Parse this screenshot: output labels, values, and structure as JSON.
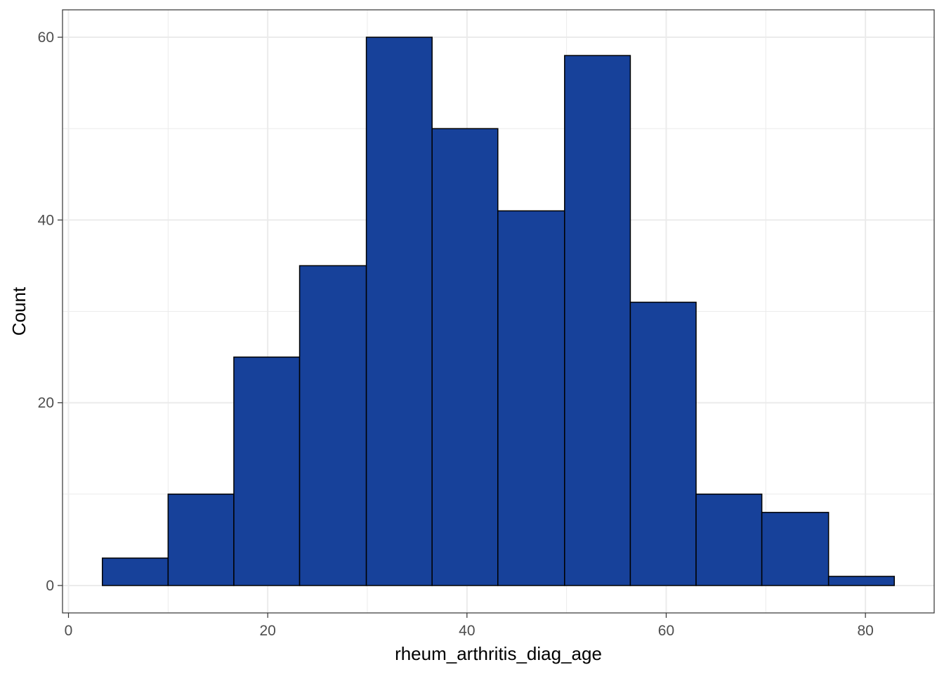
{
  "chart_data": {
    "type": "bar",
    "subtype": "histogram",
    "xlabel": "rheum_arthritis_diag_age",
    "ylabel": "Count",
    "xlim": [
      -0.6,
      86.9
    ],
    "ylim": [
      -3,
      63
    ],
    "x_ticks": [
      0,
      20,
      40,
      60,
      80
    ],
    "y_ticks": [
      0,
      20,
      40,
      60
    ],
    "x_minor_gridlines": [
      10,
      30,
      50,
      70
    ],
    "y_minor_gridlines": [
      10,
      30,
      50
    ],
    "grid": true,
    "bar_fill": "#17419A",
    "bar_stroke": "#000000",
    "bins": [
      {
        "x0": 3.4,
        "x1": 10.0,
        "count": 3
      },
      {
        "x0": 10.0,
        "x1": 16.6,
        "count": 10
      },
      {
        "x0": 16.6,
        "x1": 23.2,
        "count": 25
      },
      {
        "x0": 23.2,
        "x1": 29.9,
        "count": 35
      },
      {
        "x0": 29.9,
        "x1": 36.5,
        "count": 60
      },
      {
        "x0": 36.5,
        "x1": 43.1,
        "count": 50
      },
      {
        "x0": 43.1,
        "x1": 49.8,
        "count": 41
      },
      {
        "x0": 49.8,
        "x1": 56.4,
        "count": 58
      },
      {
        "x0": 56.4,
        "x1": 63.0,
        "count": 31
      },
      {
        "x0": 63.0,
        "x1": 69.6,
        "count": 10
      },
      {
        "x0": 69.6,
        "x1": 76.3,
        "count": 8
      },
      {
        "x0": 76.3,
        "x1": 82.9,
        "count": 1
      }
    ]
  }
}
